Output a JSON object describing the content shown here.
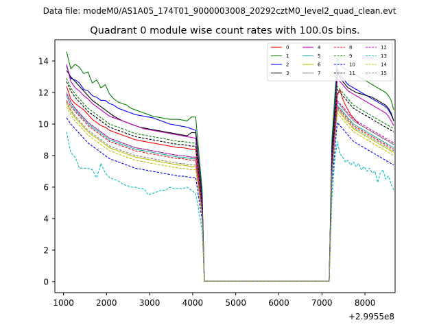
{
  "chart_data": {
    "type": "line",
    "suptitle": "Data file: modeM0/AS1A05_174T01_9000003008_20292cztM0_level2_quad_clean.evt",
    "title": "Quadrant 0 module wise count rates with 100.0s bins.",
    "xlabel": "",
    "ylabel": "",
    "x_offset_label": "+2.9955e8",
    "xlim": [
      800,
      8700
    ],
    "ylim": [
      -0.7,
      15.35
    ],
    "xticks": [
      1000,
      2000,
      3000,
      4000,
      5000,
      6000,
      7000,
      8000
    ],
    "yticks": [
      0,
      2,
      4,
      6,
      8,
      10,
      12,
      14
    ],
    "legend_position": "upper-right",
    "x_start": 1070,
    "x_step": 100,
    "gap": {
      "last_active_x": 4170,
      "drop_x": 4270,
      "rise_x": 7170
    },
    "series": [
      {
        "name": "0",
        "color": "#ff0000",
        "dash": "solid",
        "pre": [
          12.4,
          11.6,
          11.3,
          11.1,
          10.9,
          10.6,
          10.3,
          10.1,
          9.9,
          9.8,
          9.6,
          9.5,
          9.4,
          9.3,
          9.2,
          9.1,
          9.0,
          8.95,
          8.9,
          8.85,
          8.8,
          8.75,
          8.7,
          8.65,
          8.6,
          8.55,
          8.5,
          8.5,
          8.45,
          8.4,
          8.4
        ],
        "mid": 4.9,
        "post": [
          7.5,
          9.8,
          11.8,
          12.2,
          11.6,
          11.2,
          10.9,
          10.6,
          10.4,
          10.2,
          10.0,
          9.9,
          9.8,
          9.7,
          9.6,
          9.5,
          9.4,
          9.3,
          9.2,
          9.1,
          9.0,
          8.9,
          8.8,
          8.7
        ]
      },
      {
        "name": "1",
        "color": "#008000",
        "dash": "solid",
        "pre": [
          14.6,
          13.5,
          13.8,
          13.6,
          13.2,
          13.3,
          12.6,
          12.8,
          12.3,
          12.5,
          11.9,
          11.6,
          11.4,
          11.3,
          11.2,
          11.0,
          10.9,
          10.8,
          10.7,
          10.6,
          10.5,
          10.45,
          10.4,
          10.35,
          10.3,
          10.3,
          10.3,
          10.25,
          10.2,
          10.45,
          10.45
        ],
        "mid": 5.8,
        "post": [
          9.0,
          11.6,
          14.2,
          13.8,
          13.6,
          13.5,
          13.4,
          13.3,
          13.2,
          13.1,
          13.0,
          12.9,
          12.8,
          12.7,
          12.6,
          12.5,
          12.4,
          12.3,
          12.2,
          12.1,
          12.0,
          11.8,
          11.5,
          10.9
        ]
      },
      {
        "name": "2",
        "color": "#0000ff",
        "dash": "solid",
        "pre": [
          13.7,
          12.9,
          12.8,
          12.6,
          12.2,
          12.1,
          11.8,
          11.7,
          11.5,
          11.5,
          11.3,
          11.2,
          11.0,
          10.9,
          10.8,
          10.7,
          10.6,
          10.55,
          10.5,
          10.45,
          10.4,
          10.3,
          10.2,
          10.1,
          10.0,
          9.95,
          9.9,
          9.85,
          9.8,
          9.7,
          9.6
        ],
        "mid": 5.4,
        "post": [
          8.5,
          10.8,
          13.5,
          13.2,
          12.9,
          12.7,
          12.5,
          12.4,
          12.3,
          12.2,
          12.1,
          12.0,
          11.9,
          11.8,
          11.7,
          11.6,
          11.5,
          11.4,
          11.3,
          11.2,
          11.1,
          10.9,
          10.6,
          10.2
        ]
      },
      {
        "name": "3",
        "color": "#000000",
        "dash": "solid",
        "pre": [
          13.4,
          13.0,
          12.7,
          12.4,
          12.1,
          11.8,
          11.5,
          11.3,
          11.1,
          10.9,
          10.7,
          10.5,
          10.35,
          10.2,
          10.1,
          10.0,
          9.9,
          9.8,
          9.75,
          9.7,
          9.65,
          9.6,
          9.55,
          9.5,
          9.45,
          9.4,
          9.35,
          9.3,
          9.25,
          9.45,
          9.45
        ],
        "mid": 5.3,
        "post": [
          8.3,
          10.6,
          13.2,
          13.0,
          12.7,
          12.5,
          12.3,
          12.2,
          12.1,
          12.0,
          11.95,
          11.9,
          11.85,
          11.8,
          11.75,
          11.7,
          11.6,
          11.5,
          11.4,
          11.3,
          11.2,
          11.0,
          10.7,
          10.2
        ]
      },
      {
        "name": "4",
        "color": "#bf00bf",
        "dash": "solid",
        "pre": [
          13.8,
          12.7,
          12.3,
          12.1,
          11.8,
          11.6,
          11.3,
          11.1,
          10.9,
          10.7,
          10.5,
          10.4,
          10.3,
          10.2,
          10.1,
          10.0,
          9.9,
          9.8,
          9.7,
          9.65,
          9.6,
          9.55,
          9.5,
          9.45,
          9.4,
          9.35,
          9.3,
          9.25,
          9.2,
          9.15,
          9.1
        ],
        "mid": 5.1,
        "post": [
          8.0,
          10.2,
          12.9,
          12.7,
          12.5,
          12.3,
          12.1,
          12.0,
          11.9,
          11.8,
          11.7,
          11.6,
          11.5,
          11.4,
          11.3,
          11.2,
          11.1,
          11.0,
          10.9,
          10.8,
          10.7,
          10.5,
          10.2,
          9.9
        ]
      },
      {
        "name": "5",
        "color": "#20b2aa",
        "dash": "solid",
        "pre": [
          11.8,
          11.2,
          10.9,
          10.6,
          10.3,
          10.0,
          9.8,
          9.6,
          9.4,
          9.2,
          9.0,
          8.9,
          8.8,
          8.7,
          8.6,
          8.5,
          8.4,
          8.35,
          8.3,
          8.25,
          8.2,
          8.15,
          8.1,
          8.05,
          8.0,
          7.95,
          7.9,
          7.9,
          7.85,
          7.8,
          7.8
        ],
        "mid": 4.5,
        "post": [
          7.0,
          9.2,
          11.2,
          11.0,
          10.8,
          10.6,
          10.4,
          10.2,
          10.0,
          9.9,
          9.8,
          9.7,
          9.6,
          9.5,
          9.4,
          9.3,
          9.2,
          9.1,
          9.0,
          8.9,
          8.8,
          8.7,
          8.6,
          8.5
        ]
      },
      {
        "name": "6",
        "color": "#bfbf00",
        "dash": "solid",
        "pre": [
          11.3,
          10.8,
          10.4,
          10.1,
          9.8,
          9.5,
          9.3,
          9.1,
          8.9,
          8.7,
          8.5,
          8.4,
          8.3,
          8.2,
          8.1,
          8.0,
          7.9,
          7.85,
          7.8,
          7.75,
          7.7,
          7.65,
          7.6,
          7.55,
          7.5,
          7.45,
          7.4,
          7.4,
          7.35,
          7.3,
          7.3
        ],
        "mid": 4.3,
        "post": [
          6.8,
          8.9,
          10.9,
          10.7,
          10.5,
          10.3,
          10.1,
          9.9,
          9.7,
          9.6,
          9.5,
          9.4,
          9.3,
          9.2,
          9.1,
          9.0,
          8.9,
          8.8,
          8.7,
          8.6,
          8.5,
          8.4,
          8.3,
          8.2
        ]
      },
      {
        "name": "7",
        "color": "#808080",
        "dash": "solid",
        "pre": [
          12.0,
          11.4,
          11.0,
          10.7,
          10.4,
          10.1,
          9.9,
          9.7,
          9.5,
          9.3,
          9.1,
          9.0,
          8.9,
          8.8,
          8.7,
          8.6,
          8.5,
          8.45,
          8.4,
          8.35,
          8.3,
          8.25,
          8.2,
          8.15,
          8.1,
          8.05,
          8.0,
          8.0,
          7.95,
          7.9,
          7.9
        ],
        "mid": 4.6,
        "post": [
          7.1,
          9.3,
          11.4,
          11.2,
          11.0,
          10.8,
          10.6,
          10.4,
          10.2,
          10.1,
          10.0,
          9.9,
          9.8,
          9.7,
          9.6,
          9.5,
          9.4,
          9.3,
          9.2,
          9.1,
          9.0,
          8.9,
          8.8,
          8.7
        ]
      },
      {
        "name": "8",
        "color": "#ff0000",
        "dash": "dashed",
        "pre": [
          11.5,
          11.1,
          10.8,
          10.5,
          10.2,
          9.9,
          9.7,
          9.5,
          9.3,
          9.1,
          8.9,
          8.8,
          8.7,
          8.6,
          8.5,
          8.4,
          8.3,
          8.25,
          8.2,
          8.15,
          8.1,
          8.05,
          8.0,
          7.95,
          7.9,
          7.85,
          7.8,
          7.8,
          7.75,
          7.7,
          7.7
        ],
        "mid": 4.5,
        "post": [
          7.0,
          9.1,
          11.1,
          10.9,
          10.7,
          10.5,
          10.3,
          10.1,
          9.9,
          9.8,
          9.7,
          9.6,
          9.5,
          9.4,
          9.3,
          9.2,
          9.1,
          9.0,
          8.9,
          8.8,
          8.7,
          8.6,
          8.5,
          8.4
        ]
      },
      {
        "name": "9",
        "color": "#008000",
        "dash": "dashed",
        "pre": [
          12.9,
          12.3,
          11.9,
          11.6,
          11.3,
          11.0,
          10.8,
          10.6,
          10.4,
          10.2,
          10.0,
          9.9,
          9.8,
          9.7,
          9.6,
          9.5,
          9.4,
          9.35,
          9.3,
          9.25,
          9.2,
          9.15,
          9.1,
          9.05,
          9.0,
          8.95,
          8.9,
          8.9,
          8.85,
          8.8,
          8.8
        ],
        "mid": 5.0,
        "post": [
          7.8,
          10.1,
          12.4,
          12.2,
          12.0,
          11.8,
          11.6,
          11.4,
          11.2,
          11.1,
          11.0,
          10.9,
          10.8,
          10.7,
          10.6,
          10.5,
          10.4,
          10.3,
          10.2,
          10.1,
          10.0,
          9.9,
          9.8,
          9.7
        ]
      },
      {
        "name": "10",
        "color": "#0000ff",
        "dash": "dashed",
        "pre": [
          10.4,
          10.0,
          9.7,
          9.4,
          9.1,
          8.8,
          8.6,
          8.4,
          8.2,
          8.0,
          7.8,
          7.7,
          7.6,
          7.5,
          7.4,
          7.3,
          7.2,
          7.15,
          7.1,
          7.05,
          7.0,
          6.95,
          6.9,
          6.85,
          6.8,
          6.75,
          6.7,
          6.7,
          6.65,
          6.6,
          6.6
        ],
        "mid": 3.9,
        "post": [
          6.2,
          8.2,
          10.1,
          9.9,
          9.7,
          9.5,
          9.3,
          9.1,
          8.9,
          8.8,
          8.7,
          8.6,
          8.5,
          8.4,
          8.3,
          8.2,
          8.1,
          8.0,
          7.9,
          7.8,
          7.7,
          7.6,
          7.5,
          7.4
        ]
      },
      {
        "name": "11",
        "color": "#000000",
        "dash": "dashed",
        "pre": [
          12.7,
          12.1,
          11.7,
          11.4,
          11.1,
          10.8,
          10.6,
          10.4,
          10.2,
          10.0,
          9.8,
          9.7,
          9.6,
          9.5,
          9.4,
          9.3,
          9.2,
          9.15,
          9.1,
          9.05,
          9.0,
          8.95,
          8.9,
          8.85,
          8.8,
          8.75,
          8.7,
          8.7,
          8.65,
          8.6,
          8.6
        ],
        "mid": 4.9,
        "post": [
          7.6,
          9.9,
          12.2,
          12.0,
          11.8,
          11.6,
          11.4,
          11.2,
          11.0,
          10.9,
          10.8,
          10.7,
          10.6,
          10.5,
          10.4,
          10.3,
          10.2,
          10.1,
          10.0,
          9.9,
          9.8,
          9.7,
          9.6,
          9.5
        ]
      },
      {
        "name": "12",
        "color": "#bf00bf",
        "dash": "dashed",
        "pre": [
          11.9,
          11.4,
          11.0,
          10.7,
          10.4,
          10.1,
          9.9,
          9.7,
          9.5,
          9.3,
          9.1,
          9.0,
          8.9,
          8.8,
          8.7,
          8.6,
          8.5,
          8.45,
          8.4,
          8.35,
          8.3,
          8.25,
          8.2,
          8.15,
          8.1,
          8.05,
          8.0,
          8.0,
          7.95,
          7.9,
          7.9
        ],
        "mid": 4.6,
        "post": [
          7.1,
          9.3,
          11.5,
          11.3,
          11.1,
          10.9,
          10.7,
          10.5,
          10.3,
          10.2,
          10.1,
          10.0,
          9.9,
          9.8,
          9.7,
          9.6,
          9.5,
          9.4,
          9.3,
          9.2,
          9.1,
          9.0,
          8.9,
          8.8
        ]
      },
      {
        "name": "13",
        "color": "#00bfbf",
        "dash": "dashed",
        "pre": [
          9.5,
          8.2,
          7.9,
          7.2,
          7.2,
          7.2,
          7.1,
          6.6,
          7.5,
          6.9,
          6.6,
          6.5,
          6.4,
          6.2,
          6.1,
          6.0,
          6.0,
          5.9,
          5.9,
          5.5,
          5.6,
          5.7,
          5.8,
          5.8,
          6.0,
          5.9,
          5.9,
          5.9,
          6.0,
          5.8,
          5.6
        ],
        "mid": 3.3,
        "post": [
          5.2,
          7.6,
          8.9,
          8.1,
          7.9,
          7.6,
          7.7,
          7.4,
          7.6,
          7.3,
          7.5,
          7.1,
          7.3,
          7.0,
          7.2,
          6.9,
          7.0,
          6.3,
          6.9,
          7.1,
          6.5,
          6.7,
          6.2,
          5.8
        ]
      },
      {
        "name": "14",
        "color": "#bfbf00",
        "dash": "dashed",
        "pre": [
          11.1,
          10.6,
          10.2,
          9.9,
          9.6,
          9.3,
          9.1,
          8.9,
          8.7,
          8.5,
          8.3,
          8.2,
          8.1,
          8.0,
          7.9,
          7.8,
          7.7,
          7.65,
          7.6,
          7.55,
          7.5,
          7.45,
          7.4,
          7.35,
          7.3,
          7.25,
          7.2,
          7.2,
          7.15,
          7.1,
          7.1
        ],
        "mid": 4.2,
        "post": [
          6.7,
          8.7,
          10.7,
          10.5,
          10.3,
          10.1,
          9.9,
          9.7,
          9.5,
          9.4,
          9.3,
          9.2,
          9.1,
          9.0,
          8.9,
          8.8,
          8.7,
          8.6,
          8.5,
          8.4,
          8.3,
          8.2,
          8.1,
          8.0
        ]
      },
      {
        "name": "15",
        "color": "#808080",
        "dash": "dashed",
        "pre": [
          11.4,
          10.9,
          10.5,
          10.2,
          9.9,
          9.6,
          9.4,
          9.2,
          9.0,
          8.8,
          8.6,
          8.5,
          8.4,
          8.3,
          8.2,
          8.1,
          8.0,
          7.95,
          7.9,
          7.85,
          7.8,
          7.75,
          7.7,
          7.65,
          7.6,
          7.55,
          7.5,
          7.5,
          7.45,
          7.4,
          7.4
        ],
        "mid": 4.4,
        "post": [
          6.9,
          9.0,
          11.0,
          10.8,
          10.6,
          10.4,
          10.2,
          10.0,
          9.8,
          9.7,
          9.6,
          9.5,
          9.4,
          9.3,
          9.2,
          9.1,
          9.0,
          8.9,
          8.8,
          8.7,
          8.6,
          8.5,
          8.4,
          8.3
        ]
      }
    ]
  }
}
